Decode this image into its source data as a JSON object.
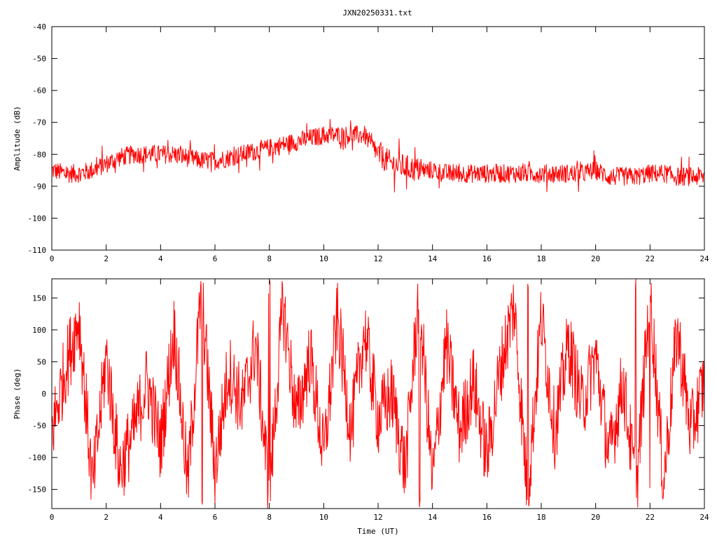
{
  "title": "JXN20250331.txt",
  "series_color": "#ff0000",
  "chart_data": [
    {
      "type": "line",
      "name": "amplitude-panel",
      "xlabel": "",
      "ylabel": "Amplitude (dB)",
      "xlim": [
        0,
        24
      ],
      "ylim": [
        -110,
        -40
      ],
      "xticks": [
        0,
        2,
        4,
        6,
        8,
        10,
        12,
        14,
        16,
        18,
        20,
        22,
        24
      ],
      "yticks": [
        -110,
        -100,
        -90,
        -80,
        -70,
        -60,
        -50,
        -40
      ],
      "grid": false,
      "x": [
        0,
        0.5,
        1,
        1.5,
        2,
        2.5,
        3,
        3.5,
        4,
        4.5,
        5,
        5.5,
        6,
        6.5,
        7,
        7.5,
        8,
        8.5,
        9,
        9.5,
        10,
        10.5,
        11,
        11.5,
        12,
        12.5,
        13,
        13.5,
        14,
        14.5,
        15,
        15.5,
        16,
        16.5,
        17,
        17.5,
        18,
        18.5,
        19,
        19.5,
        20,
        20.5,
        21,
        21.5,
        22,
        22.5,
        23,
        23.5,
        24
      ],
      "y": [
        -85,
        -86,
        -86,
        -85,
        -83,
        -81,
        -80,
        -80,
        -80,
        -80,
        -81,
        -82,
        -82,
        -81,
        -80,
        -79,
        -78,
        -77,
        -76,
        -75,
        -74,
        -74,
        -74,
        -74,
        -80,
        -83,
        -84,
        -85,
        -85,
        -86,
        -86,
        -86,
        -86,
        -86,
        -86,
        -86,
        -86,
        -86,
        -86,
        -86,
        -85,
        -87,
        -87,
        -87,
        -86,
        -86,
        -87,
        -87,
        -87
      ],
      "spread": [
        3,
        3,
        3,
        3,
        3,
        3,
        3,
        3,
        3,
        3,
        3,
        3,
        3,
        3,
        3,
        3,
        3,
        3,
        3,
        3,
        3,
        3,
        3,
        3,
        4,
        4,
        4,
        3,
        3,
        3,
        3,
        3,
        3,
        3,
        3,
        3,
        3,
        3,
        3,
        3,
        3,
        3,
        3,
        3,
        3,
        3,
        3,
        3,
        3
      ]
    },
    {
      "type": "line",
      "name": "phase-panel",
      "xlabel": "Time (UT)",
      "ylabel": "Phase (deg)",
      "xlim": [
        0,
        24
      ],
      "ylim": [
        -180,
        180
      ],
      "xticks": [
        0,
        2,
        4,
        6,
        8,
        10,
        12,
        14,
        16,
        18,
        20,
        22,
        24
      ],
      "yticks": [
        -150,
        -100,
        -50,
        0,
        50,
        100,
        150
      ],
      "grid": false,
      "wrap_range": [
        -180,
        180
      ],
      "x": [
        0,
        0.5,
        1,
        1.5,
        2,
        2.5,
        3,
        3.5,
        4,
        4.5,
        5,
        5.5,
        6,
        6.5,
        7,
        7.5,
        8,
        8.5,
        9,
        9.5,
        10,
        10.5,
        11,
        11.5,
        12,
        12.5,
        13,
        13.5,
        14,
        14.5,
        15,
        15.5,
        16,
        16.5,
        17,
        17.5,
        18,
        18.5,
        19,
        19.5,
        20,
        20.5,
        21,
        21.5,
        22,
        22.5,
        23,
        23.5,
        24
      ],
      "y": [
        -60,
        40,
        120,
        -150,
        60,
        -120,
        -60,
        20,
        -80,
        100,
        -140,
        160,
        -120,
        40,
        -20,
        80,
        -160,
        140,
        -40,
        60,
        -100,
        120,
        -60,
        100,
        -40,
        0,
        -120,
        160,
        -140,
        80,
        -60,
        20,
        -100,
        40,
        140,
        -160,
        120,
        -60,
        80,
        -20,
        60,
        -100,
        20,
        -150,
        160,
        -140,
        100,
        -60,
        20
      ]
    }
  ]
}
